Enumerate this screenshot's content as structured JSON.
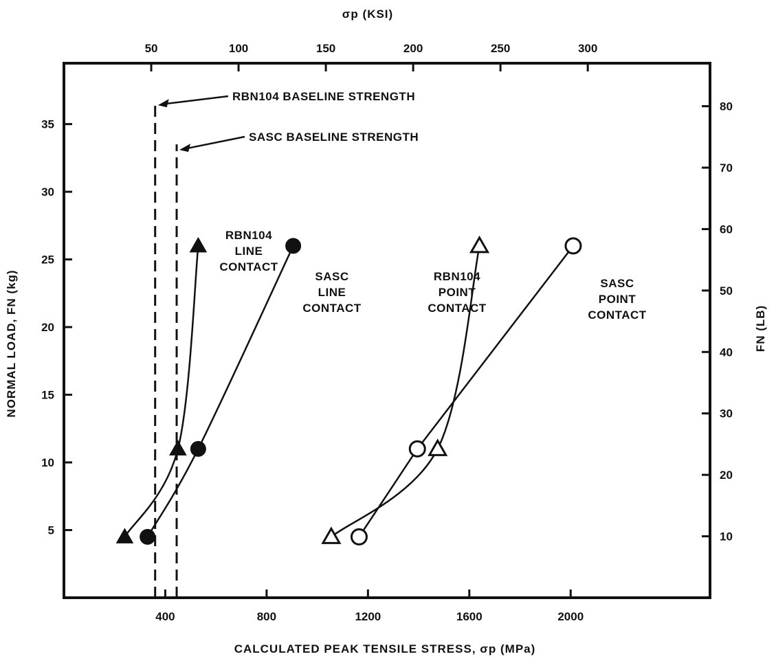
{
  "chart_data": {
    "type": "line",
    "title": "",
    "xlabel": "CALCULATED PEAK TENSILE STRESS, σp (MPa)",
    "ylabel": "NORMAL LOAD, FN (kg)",
    "x2label": "σp (KSI)",
    "y2label": "FN (LB)",
    "xlim": [
      0,
      2550
    ],
    "ylim": [
      0,
      39.5
    ],
    "x2lim": [
      0,
      370
    ],
    "y2lim": [
      0,
      87
    ],
    "x_ticks": [
      400,
      800,
      1200,
      1600,
      2000
    ],
    "y_ticks": [
      5,
      10,
      15,
      20,
      25,
      30,
      35
    ],
    "x2_ticks": [
      50,
      100,
      150,
      200,
      250,
      300
    ],
    "y2_ticks": [
      10,
      20,
      30,
      40,
      50,
      60,
      70,
      80
    ],
    "grid": false,
    "series": [
      {
        "marker": "filled-triangle",
        "x": [
          240,
          450,
          530
        ],
        "y": [
          4.5,
          11,
          26
        ]
      },
      {
        "marker": "filled-circle",
        "x": [
          330,
          530,
          905
        ],
        "y": [
          4.5,
          11,
          26
        ]
      },
      {
        "marker": "open-triangle",
        "x": [
          1055,
          1475,
          1640
        ],
        "y": [
          4.5,
          11,
          26
        ]
      },
      {
        "marker": "open-circle",
        "x": [
          1165,
          1395,
          2010
        ],
        "y": [
          4.5,
          11,
          26
        ]
      }
    ],
    "series_labels": [
      {
        "lines": [
          "RBN104",
          "LINE",
          "CONTACT"
        ]
      },
      {
        "lines": [
          "SASC",
          "LINE",
          "CONTACT"
        ]
      },
      {
        "lines": [
          "RBN104",
          "POINT",
          "CONTACT"
        ]
      },
      {
        "lines": [
          "SASC",
          "POINT",
          "CONTACT"
        ]
      }
    ],
    "reference_lines": [
      {
        "label": "RBN104 BASELINE STRENGTH",
        "x": 360,
        "y_top": 36.8
      },
      {
        "label": "SASC BASELINE STRENGTH",
        "x": 445,
        "y_top": 33.5
      }
    ]
  }
}
